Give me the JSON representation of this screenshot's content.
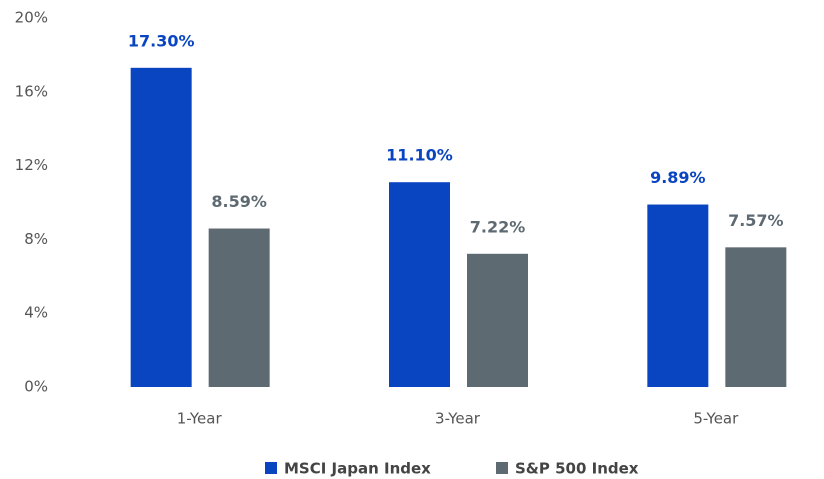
{
  "chart_data": {
    "type": "bar",
    "categories": [
      "1-Year",
      "3-Year",
      "5-Year"
    ],
    "series": [
      {
        "name": "MSCI Japan Index",
        "color": "#0a45c1",
        "values": [
          17.3,
          11.1,
          9.89
        ],
        "value_labels": [
          "17.30%",
          "11.10%",
          "9.89%"
        ]
      },
      {
        "name": "S&P 500 Index",
        "color": "#5e6a72",
        "values": [
          8.59,
          7.22,
          7.57
        ],
        "value_labels": [
          "8.59%",
          "7.22%",
          "7.57%"
        ]
      }
    ],
    "ylim": [
      0,
      20
    ],
    "yticks": [
      {
        "value": 0,
        "label": "0%"
      },
      {
        "value": 4,
        "label": "4%"
      },
      {
        "value": 8,
        "label": "8%"
      },
      {
        "value": 12,
        "label": "12%"
      },
      {
        "value": 16,
        "label": "16%"
      },
      {
        "value": 20,
        "label": "20%"
      }
    ],
    "grid": false,
    "legend": "bottom"
  }
}
